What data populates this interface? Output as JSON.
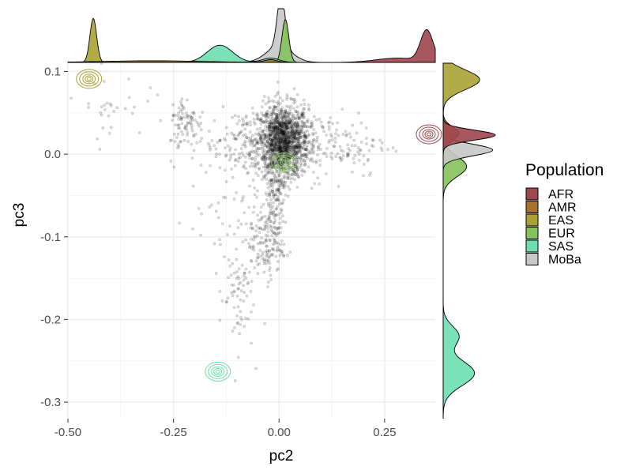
{
  "chart_data": {
    "type": "scatter",
    "xlabel": "pc2",
    "ylabel": "pc3",
    "xlim": [
      -0.5,
      0.37
    ],
    "ylim": [
      -0.32,
      0.11
    ],
    "x_ticks": [
      {
        "value": -0.5,
        "label": "-0.50"
      },
      {
        "value": -0.25,
        "label": "-0.25"
      },
      {
        "value": 0.0,
        "label": "0.00"
      },
      {
        "value": 0.25,
        "label": "0.25"
      }
    ],
    "y_ticks": [
      {
        "value": 0.1,
        "label": "0.1"
      },
      {
        "value": 0.0,
        "label": "0.0"
      },
      {
        "value": -0.1,
        "label": "-0.1"
      },
      {
        "value": -0.2,
        "label": "-0.2"
      },
      {
        "value": -0.3,
        "label": "-0.3"
      }
    ],
    "grid": true,
    "legend_position": "right",
    "legend": {
      "title": "Population",
      "entries": [
        {
          "name": "AFR",
          "color": "#A0464F"
        },
        {
          "name": "AMR",
          "color": "#A8702E"
        },
        {
          "name": "EAS",
          "color": "#A8A234"
        },
        {
          "name": "EUR",
          "color": "#85C25C"
        },
        {
          "name": "SAS",
          "color": "#6DDFAF"
        },
        {
          "name": "MoBa",
          "color": "#C8C8C8"
        }
      ]
    },
    "contour_centers": [
      {
        "population": "AFR",
        "x": 0.355,
        "y": 0.024
      },
      {
        "population": "EAS",
        "x": -0.45,
        "y": 0.091
      },
      {
        "population": "EUR",
        "x": 0.012,
        "y": -0.01
      },
      {
        "population": "SAS",
        "x": -0.145,
        "y": -0.263
      }
    ],
    "moba_clusters": [
      {
        "x": 0.01,
        "y": 0.015,
        "sx": 0.03,
        "sy": 0.022,
        "n": 1400
      },
      {
        "x": -0.07,
        "y": 0.015,
        "sx": 0.07,
        "sy": 0.02,
        "n": 220
      },
      {
        "x": 0.12,
        "y": 0.012,
        "sx": 0.07,
        "sy": 0.02,
        "n": 160
      },
      {
        "x": -0.22,
        "y": 0.04,
        "sx": 0.02,
        "sy": 0.015,
        "n": 80
      },
      {
        "x": -0.4,
        "y": 0.06,
        "sx": 0.04,
        "sy": 0.02,
        "n": 30
      },
      {
        "x": -0.01,
        "y": -0.05,
        "sx": 0.012,
        "sy": 0.03,
        "n": 140
      },
      {
        "x": -0.03,
        "y": -0.11,
        "sx": 0.02,
        "sy": 0.02,
        "n": 120
      },
      {
        "x": -0.1,
        "y": -0.17,
        "sx": 0.02,
        "sy": 0.035,
        "n": 70
      },
      {
        "x": -0.1,
        "y": -0.08,
        "sx": 0.06,
        "sy": 0.03,
        "n": 60
      }
    ],
    "top_density": [
      {
        "population": "MoBa",
        "peaks": [
          [
            0.005,
            0.009,
            1.0
          ],
          [
            0.0,
            0.03,
            0.3
          ]
        ]
      },
      {
        "population": "EUR",
        "peaks": [
          [
            0.015,
            0.008,
            0.8
          ]
        ]
      },
      {
        "population": "SAS",
        "peaks": [
          [
            -0.14,
            0.03,
            0.32
          ],
          [
            -0.02,
            0.02,
            0.08
          ]
        ]
      },
      {
        "population": "EAS",
        "peaks": [
          [
            -0.44,
            0.008,
            0.82
          ]
        ]
      },
      {
        "population": "AFR",
        "peaks": [
          [
            0.35,
            0.015,
            0.58
          ],
          [
            0.28,
            0.05,
            0.08
          ]
        ]
      },
      {
        "population": "AMR",
        "peaks": [
          [
            -0.3,
            0.12,
            0.03
          ],
          [
            -0.02,
            0.015,
            0.05
          ]
        ]
      }
    ],
    "right_density": [
      {
        "population": "SAS",
        "peaks": [
          [
            -0.265,
            0.015,
            0.6
          ],
          [
            -0.22,
            0.012,
            0.3
          ]
        ]
      },
      {
        "population": "EUR",
        "peaks": [
          [
            -0.015,
            0.012,
            0.45
          ]
        ]
      },
      {
        "population": "MoBa",
        "peaks": [
          [
            0.005,
            0.007,
            0.95
          ]
        ]
      },
      {
        "population": "AMR",
        "peaks": [
          [
            0.025,
            0.008,
            0.3
          ]
        ]
      },
      {
        "population": "AFR",
        "peaks": [
          [
            0.023,
            0.006,
            1.0
          ]
        ]
      },
      {
        "population": "EAS",
        "peaks": [
          [
            0.09,
            0.012,
            0.7
          ]
        ]
      }
    ]
  }
}
